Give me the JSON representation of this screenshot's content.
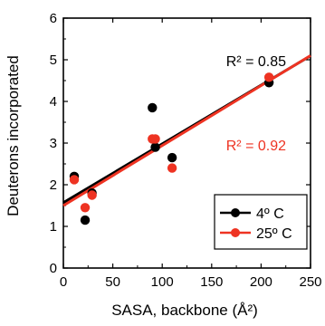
{
  "chart_data": {
    "type": "scatter",
    "xlabel": "SASA, backbone (Å²)",
    "ylabel": "Deuterons incorporated",
    "xlim": [
      0,
      250
    ],
    "ylim": [
      0,
      6
    ],
    "x_ticks": [
      0,
      50,
      100,
      150,
      200,
      250
    ],
    "y_ticks": [
      0,
      1,
      2,
      3,
      4,
      5,
      6
    ],
    "legend_position": "lower-right",
    "grid": false,
    "series": [
      {
        "name": "4º C",
        "color": "#000000",
        "points": [
          {
            "x": 11,
            "y": 2.2
          },
          {
            "x": 22,
            "y": 1.15
          },
          {
            "x": 29,
            "y": 1.8
          },
          {
            "x": 90,
            "y": 3.85
          },
          {
            "x": 93,
            "y": 2.9
          },
          {
            "x": 110,
            "y": 2.65
          },
          {
            "x": 208,
            "y": 4.45
          }
        ],
        "fit": {
          "intercept": 1.57,
          "slope": 0.0141
        },
        "r2_label": "R² = 0.85"
      },
      {
        "name": "25º C",
        "color": "#ee3322",
        "points": [
          {
            "x": 11,
            "y": 2.12
          },
          {
            "x": 22,
            "y": 1.45
          },
          {
            "x": 29,
            "y": 1.75
          },
          {
            "x": 90,
            "y": 3.1
          },
          {
            "x": 93,
            "y": 3.1
          },
          {
            "x": 110,
            "y": 2.4
          },
          {
            "x": 208,
            "y": 4.58
          }
        ],
        "fit": {
          "intercept": 1.5,
          "slope": 0.0144
        },
        "r2_label": "R² = 0.92"
      }
    ]
  }
}
